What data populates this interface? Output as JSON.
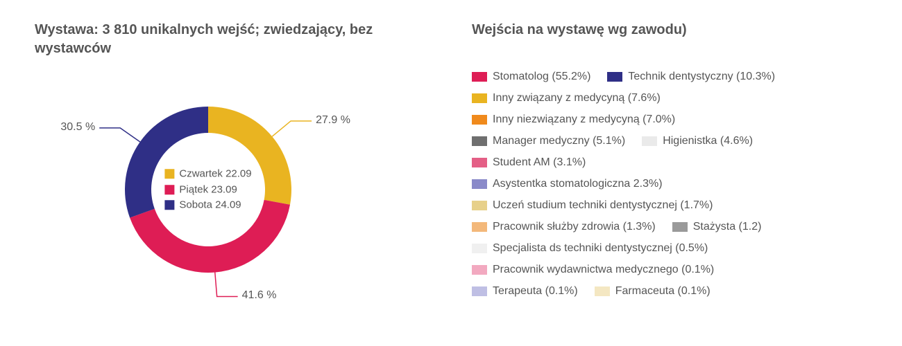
{
  "left": {
    "title": "Wystawa: 3 810 unikalnych wejść; zwiedzający, bez wystawców",
    "donut": {
      "type": "donut",
      "background_color": "#ffffff",
      "outer_radius": 120,
      "inner_radius": 82,
      "label_fontsize": 16,
      "label_color": "#555555",
      "legend_fontsize": 15,
      "slices": [
        {
          "label": "Czwartek 22.09",
          "value": 27.9,
          "ext_label": "27.9 %",
          "color": "#e9b421"
        },
        {
          "label": "Piątek 23.09",
          "value": 41.6,
          "ext_label": "41.6 %",
          "color": "#de1d55"
        },
        {
          "label": "Sobota 24.09",
          "value": 30.5,
          "ext_label": "30.5 %",
          "color": "#2f2f86"
        }
      ]
    }
  },
  "right": {
    "title": "Wejścia na wystawę wg zawodu)",
    "legend": {
      "fontsize": 16,
      "text_color": "#555555",
      "swatch_width": 22,
      "swatch_height": 14,
      "lines": [
        [
          {
            "label": "Stomatolog (55.2%)",
            "color": "#de1d55"
          },
          {
            "label": "Technik dentystyczny (10.3%)",
            "color": "#2f2f86"
          }
        ],
        [
          {
            "label": "Inny związany z medycyną (7.6%)",
            "color": "#e9b421"
          }
        ],
        [
          {
            "label": "Inny niezwiązany z medycyną (7.0%)",
            "color": "#f08a1c"
          }
        ],
        [
          {
            "label": "Manager medyczny (5.1%)",
            "color": "#6f6f6f"
          },
          {
            "label": "Higienistka (4.6%)",
            "color": "#eaeaea"
          }
        ],
        [
          {
            "label": "Student AM (3.1%)",
            "color": "#e45f86"
          }
        ],
        [
          {
            "label": "Asystentka stomatologiczna 2.3%)",
            "color": "#8a8ac9"
          }
        ],
        [
          {
            "label": "Uczeń studium techniki dentystycznej (1.7%)",
            "color": "#e7d08a"
          }
        ],
        [
          {
            "label": "Pracownik służby zdrowia (1.3%)",
            "color": "#f3b87a"
          },
          {
            "label": "Stażysta (1.2)",
            "color": "#9a9a9a"
          }
        ],
        [
          {
            "label": "Specjalista ds techniki dentystycznej (0.5%)",
            "color": "#f0f0f0"
          }
        ],
        [
          {
            "label": "Pracownik wydawnictwa medycznego (0.1%)",
            "color": "#f2a9c0"
          }
        ],
        [
          {
            "label": "Terapeuta (0.1%)",
            "color": "#bfbfe4"
          },
          {
            "label": "Farmaceuta (0.1%)",
            "color": "#f4e7c2"
          }
        ]
      ]
    }
  }
}
